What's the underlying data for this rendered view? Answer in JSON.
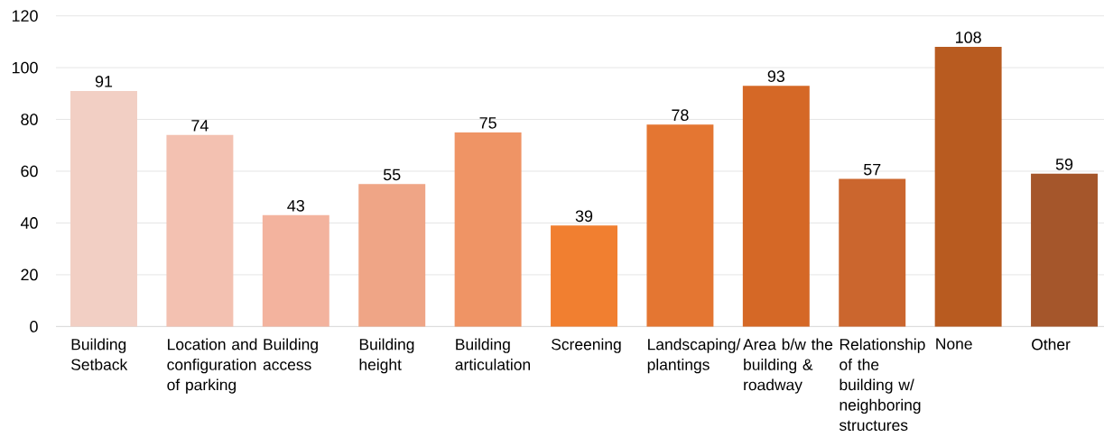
{
  "chart_data": {
    "type": "bar",
    "categories": [
      "Building Setback",
      "Location and configuration of parking",
      "Building access",
      "Building height",
      "Building articulation",
      "Screening",
      "Landscaping/plantings",
      "Area b/w the building & roadway",
      "Relationship of the building w/ neighboring structures",
      "None",
      "Other"
    ],
    "values": [
      91,
      74,
      43,
      55,
      75,
      39,
      78,
      93,
      57,
      108,
      59
    ],
    "colors": [
      "#f2cfc4",
      "#f3c1b1",
      "#f3b39e",
      "#efa586",
      "#ef9465",
      "#f17f30",
      "#e47632",
      "#d56826",
      "#cb662e",
      "#b85b20",
      "#a5562b"
    ],
    "ylim": [
      0,
      120
    ],
    "yticks": [
      0,
      20,
      40,
      60,
      80,
      100,
      120
    ],
    "grid": "y",
    "data_labels": true
  }
}
